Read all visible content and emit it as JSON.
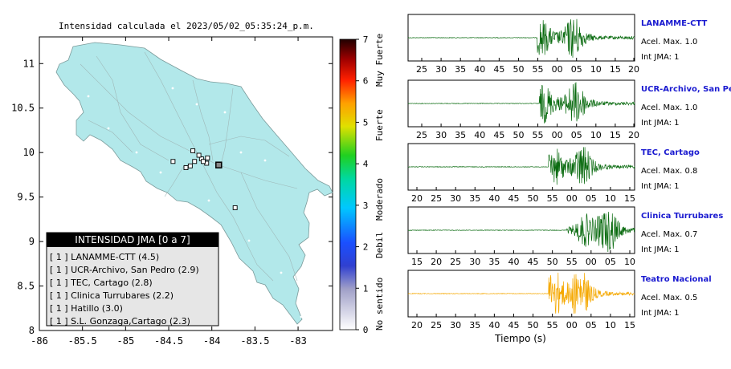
{
  "map": {
    "title": "Intensidad calculada el 2023/05/02_05:35:24_p.m.",
    "x_ticks": [
      "-86",
      "-85.5",
      "-85",
      "-84.5",
      "-84",
      "-83.5",
      "-83"
    ],
    "x_values": [
      -86,
      -85.5,
      -85,
      -84.5,
      -84,
      -83.5,
      -83
    ],
    "y_ticks": [
      "11",
      "10.5",
      "10",
      "9.5",
      "9",
      "8.5",
      "8"
    ],
    "y_values": [
      11,
      10.5,
      10,
      9.5,
      9,
      8.5,
      8
    ],
    "xlim": [
      -86,
      -82.6
    ],
    "ylim": [
      8,
      11.3
    ],
    "land_color": "#b2e8ea",
    "stations": [
      {
        "lon": -84.06,
        "lat": 9.88
      },
      {
        "lon": -84.05,
        "lat": 9.94
      },
      {
        "lon": -83.91,
        "lat": 9.86
      },
      {
        "lon": -83.73,
        "lat": 9.38
      },
      {
        "lon": -84.12,
        "lat": 9.93
      },
      {
        "lon": -84.2,
        "lat": 9.9
      },
      {
        "lon": -84.25,
        "lat": 9.85
      },
      {
        "lon": -84.1,
        "lat": 9.9
      },
      {
        "lon": -84.15,
        "lat": 9.97
      },
      {
        "lon": -84.22,
        "lat": 10.02
      },
      {
        "lon": -84.45,
        "lat": 9.9
      },
      {
        "lon": -84.3,
        "lat": 9.83
      }
    ],
    "marked_station": {
      "lon": -83.92,
      "lat": 9.86
    }
  },
  "colorbar": {
    "ticks": [
      "0",
      "1",
      "2",
      "3",
      "4",
      "5",
      "6",
      "7"
    ],
    "values": [
      0,
      1,
      2,
      3,
      4,
      5,
      6,
      7
    ],
    "labels": [
      "No sentido",
      "Debil",
      "Moderado",
      "Fuerte",
      "Muy Fuerte"
    ]
  },
  "legend": {
    "title": "INTENSIDAD JMA [0 a 7]",
    "items": [
      "[ 1 ]  LANAMME-CTT (4.5)",
      "[ 1 ]  UCR-Archivo, San Pedro (2.9)",
      "[ 1 ]  TEC, Cartago (2.8)",
      "[ 1 ]  Clinica Turrubares (2.2)",
      "[ 1 ]  Hatillo (3.0)",
      "[ 1 ]  S.L. Gonzaga,Cartago (2.3)"
    ]
  },
  "waveforms": {
    "xlabel": "Tiempo (s)",
    "panels": [
      {
        "station": "LANAMME-CTT",
        "accel": "Acel. Max. 1.0",
        "jma": "Int JMA: 1",
        "color": "#0a6b10",
        "ticks": [
          "25",
          "30",
          "35",
          "40",
          "45",
          "50",
          "55",
          "00",
          "05",
          "10",
          "15",
          "20"
        ],
        "arrival": 0.57,
        "bursts": [
          [
            0.59,
            0.62
          ],
          [
            0.73,
            0.75
          ]
        ]
      },
      {
        "station": "UCR-Archivo, San Pedro",
        "accel": "Acel. Max. 1.0",
        "jma": "Int JMA: 1",
        "color": "#0a6b10",
        "ticks": [
          "25",
          "30",
          "35",
          "40",
          "45",
          "50",
          "55",
          "00",
          "05",
          "10",
          "15",
          "20"
        ],
        "arrival": 0.58,
        "bursts": [
          [
            0.6,
            0.65
          ],
          [
            0.74,
            0.85
          ]
        ]
      },
      {
        "station": "TEC, Cartago",
        "accel": "Acel. Max. 0.8",
        "jma": "Int JMA: 1",
        "color": "#0a6b10",
        "ticks": [
          "20",
          "25",
          "30",
          "35",
          "40",
          "45",
          "50",
          "55",
          "00",
          "05",
          "10",
          "15"
        ],
        "arrival": 0.62,
        "bursts": [
          [
            0.65,
            0.6
          ],
          [
            0.77,
            0.75
          ]
        ]
      },
      {
        "station": "Clinica Turrubares",
        "accel": "Acel. Max. 0.7",
        "jma": "Int JMA: 1",
        "color": "#0a6b10",
        "ticks": [
          "15",
          "20",
          "25",
          "30",
          "35",
          "40",
          "45",
          "50",
          "55",
          "00",
          "05",
          "10"
        ],
        "arrival": 0.7,
        "bursts": [
          [
            0.78,
            0.5
          ],
          [
            0.88,
            1.0
          ]
        ]
      },
      {
        "station": "Teatro Nacional",
        "accel": "Acel. Max. 0.5",
        "jma": "Int JMA: 1",
        "color": "#f5a800",
        "ticks": [
          "20",
          "25",
          "30",
          "35",
          "40",
          "45",
          "50",
          "55",
          "00",
          "05",
          "10",
          "15"
        ],
        "arrival": 0.62,
        "bursts": [
          [
            0.64,
            0.95
          ],
          [
            0.76,
            1.0
          ]
        ]
      }
    ]
  }
}
